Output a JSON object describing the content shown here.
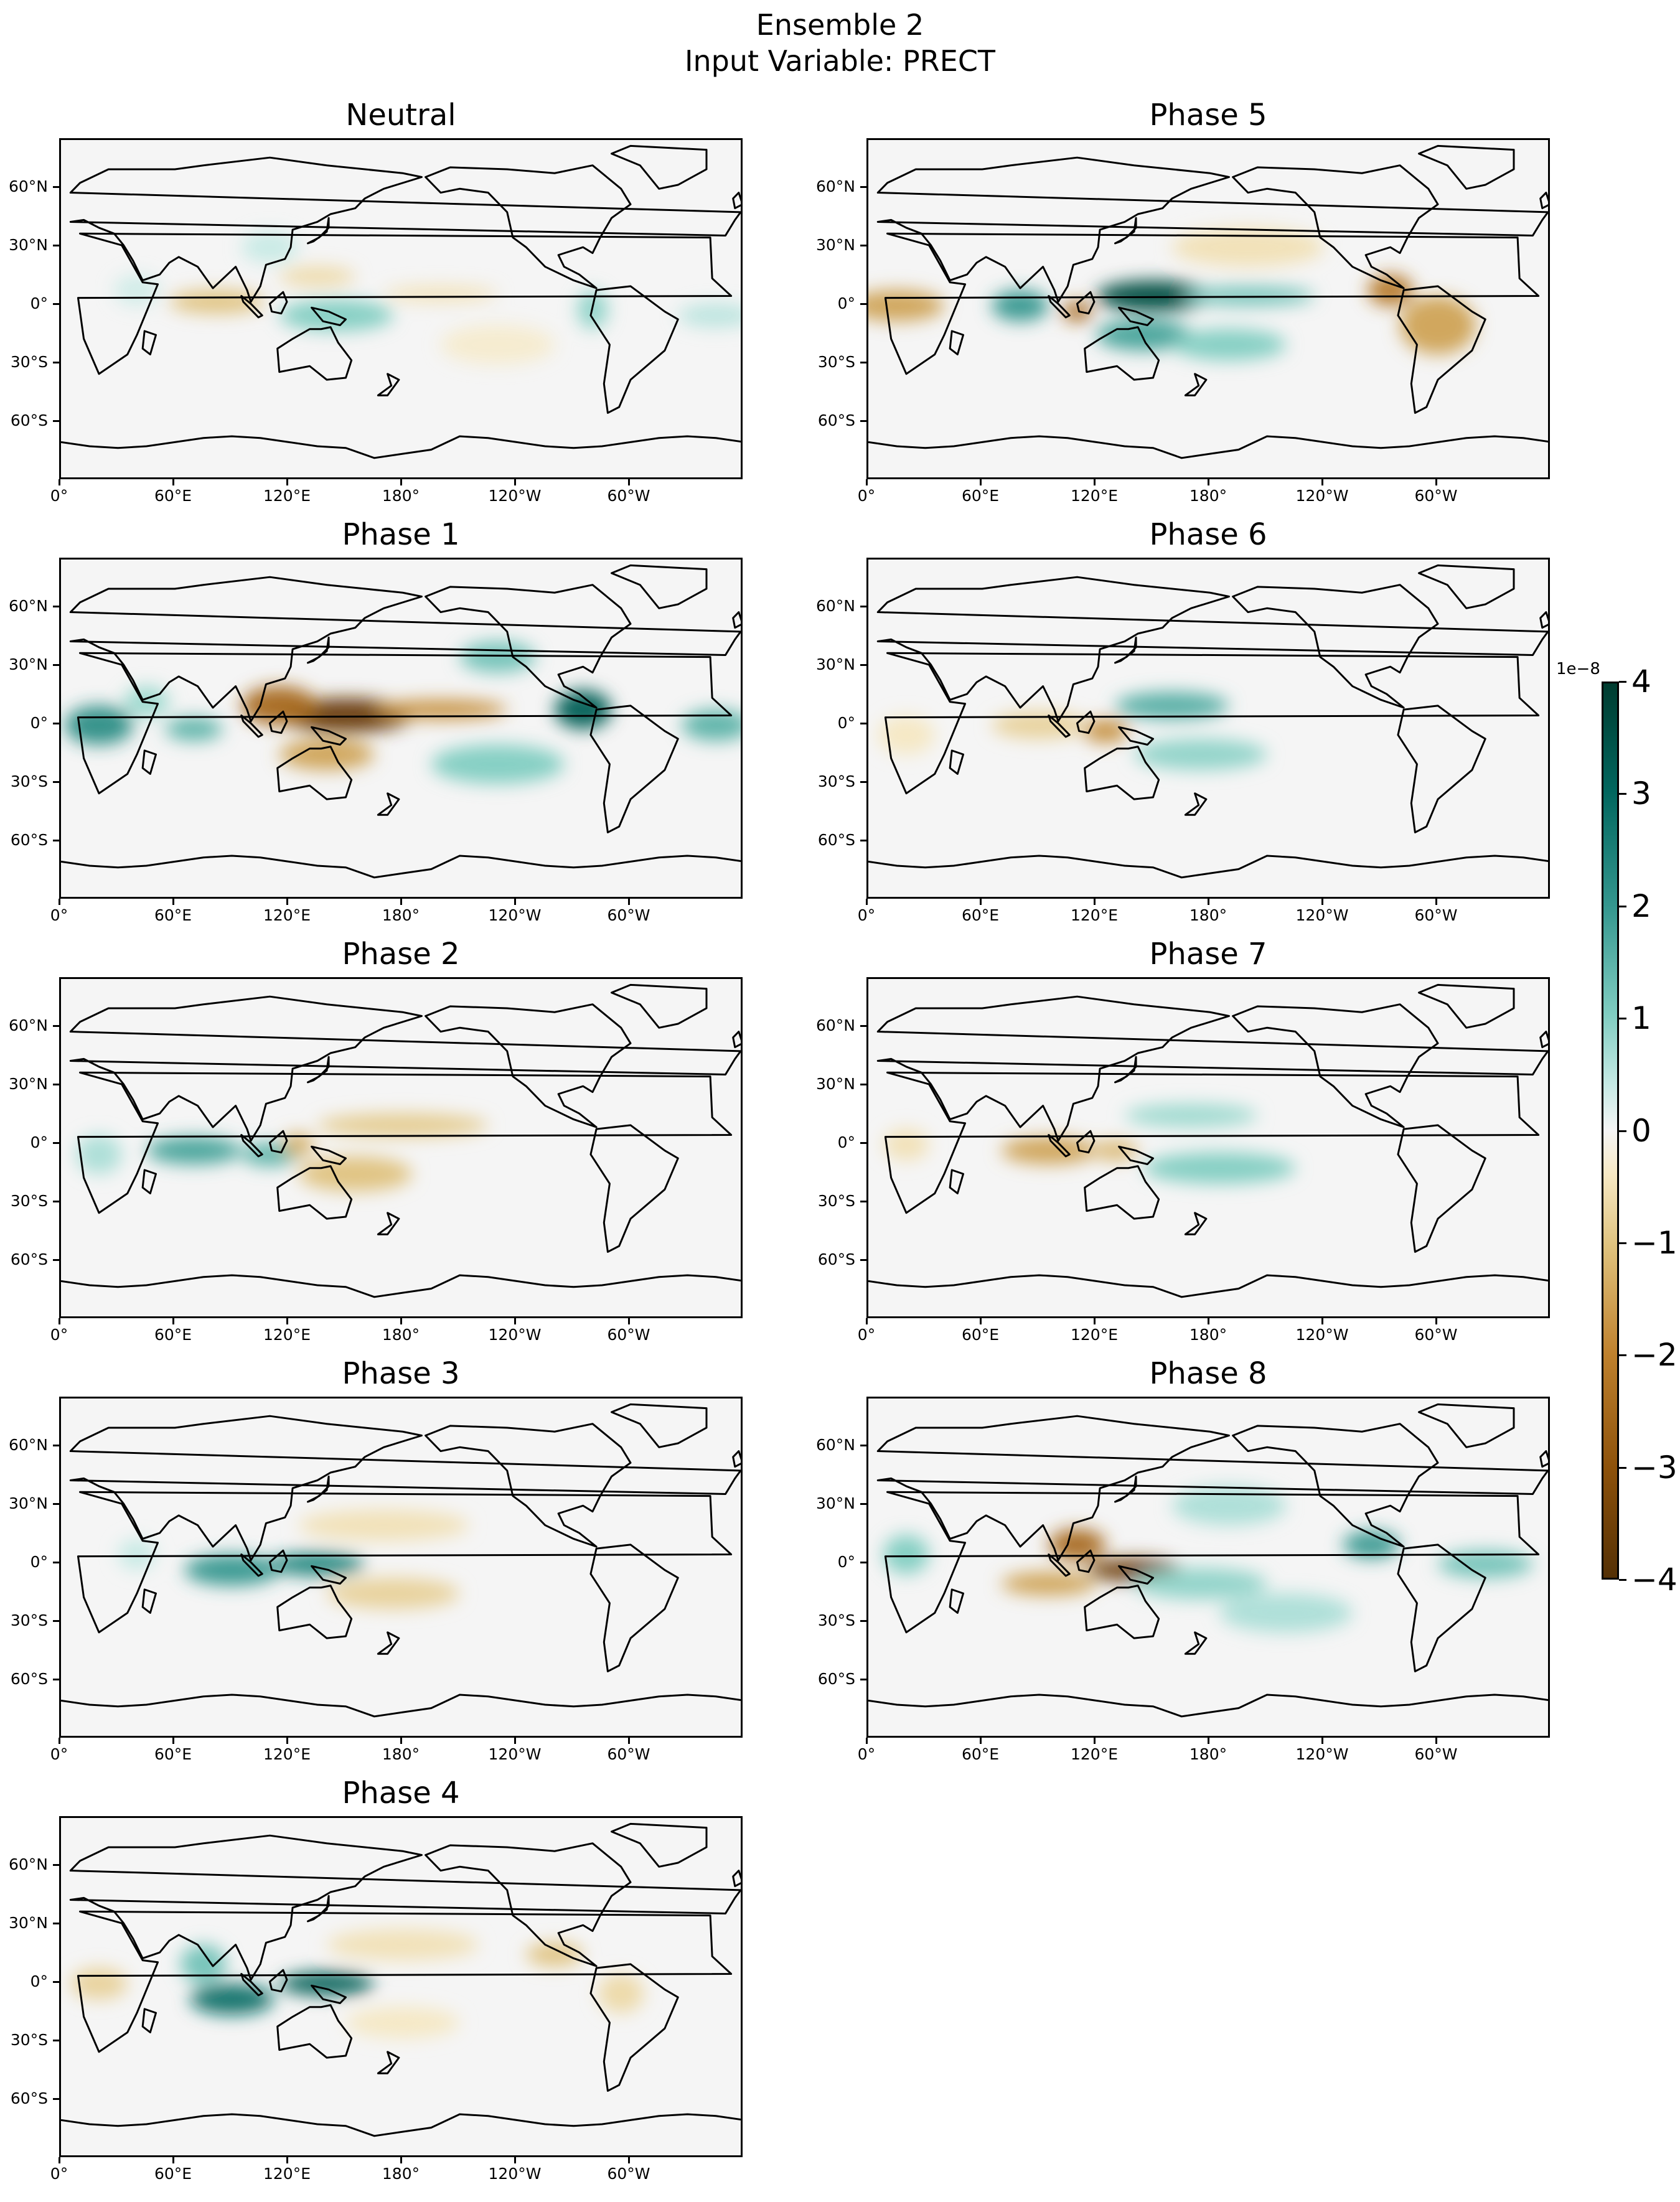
{
  "chart_data": {
    "type": "heatmap",
    "title": "Ensemble 2",
    "subtitle": "Input Variable: PRECT",
    "panels": [
      {
        "name": "Neutral",
        "blobs": [
          {
            "lon": 82,
            "lat": 2,
            "value": -1.0,
            "rx": 25,
            "ry": 6
          },
          {
            "lon": 135,
            "lat": 15,
            "value": -0.7,
            "rx": 20,
            "ry": 5
          },
          {
            "lon": 145,
            "lat": -5,
            "value": 1.0,
            "rx": 30,
            "ry": 8
          },
          {
            "lon": 200,
            "lat": 6,
            "value": -0.6,
            "rx": 30,
            "ry": 4
          },
          {
            "lon": 280,
            "lat": -2,
            "value": 0.9,
            "rx": 8,
            "ry": 10
          },
          {
            "lon": 110,
            "lat": 30,
            "value": 0.5,
            "rx": 15,
            "ry": 8
          },
          {
            "lon": 40,
            "lat": 8,
            "value": 0.4,
            "rx": 12,
            "ry": 8
          },
          {
            "lon": 230,
            "lat": -20,
            "value": -0.4,
            "rx": 30,
            "ry": 10
          },
          {
            "lon": 345,
            "lat": -5,
            "value": 0.6,
            "rx": 20,
            "ry": 6
          }
        ]
      },
      {
        "name": "Phase 1",
        "blobs": [
          {
            "lon": 150,
            "lat": 5,
            "value": -3.6,
            "rx": 35,
            "ry": 9
          },
          {
            "lon": 115,
            "lat": 10,
            "value": -2.5,
            "rx": 20,
            "ry": 10
          },
          {
            "lon": 200,
            "lat": 8,
            "value": -1.8,
            "rx": 35,
            "ry": 5
          },
          {
            "lon": 140,
            "lat": -15,
            "value": -1.5,
            "rx": 25,
            "ry": 8
          },
          {
            "lon": 20,
            "lat": 0,
            "value": 2.2,
            "rx": 18,
            "ry": 10
          },
          {
            "lon": 70,
            "lat": -2,
            "value": 1.5,
            "rx": 15,
            "ry": 6
          },
          {
            "lon": 275,
            "lat": 8,
            "value": 3.2,
            "rx": 15,
            "ry": 10
          },
          {
            "lon": 345,
            "lat": 0,
            "value": 1.5,
            "rx": 18,
            "ry": 8
          },
          {
            "lon": 230,
            "lat": 35,
            "value": 1.2,
            "rx": 20,
            "ry": 8
          },
          {
            "lon": 230,
            "lat": -20,
            "value": 1.0,
            "rx": 35,
            "ry": 10
          },
          {
            "lon": 45,
            "lat": 12,
            "value": 0.8,
            "rx": 12,
            "ry": 8
          }
        ]
      },
      {
        "name": "Phase 2",
        "blobs": [
          {
            "lon": 70,
            "lat": -3,
            "value": 1.8,
            "rx": 25,
            "ry": 7
          },
          {
            "lon": 110,
            "lat": -5,
            "value": 1.5,
            "rx": 15,
            "ry": 6
          },
          {
            "lon": 180,
            "lat": 10,
            "value": -0.9,
            "rx": 45,
            "ry": 6
          },
          {
            "lon": 155,
            "lat": -15,
            "value": -1.0,
            "rx": 30,
            "ry": 9
          },
          {
            "lon": 125,
            "lat": 0,
            "value": -1.3,
            "rx": 8,
            "ry": 6
          },
          {
            "lon": 20,
            "lat": -5,
            "value": 0.7,
            "rx": 12,
            "ry": 10
          }
        ]
      },
      {
        "name": "Phase 3",
        "blobs": [
          {
            "lon": 90,
            "lat": -3,
            "value": 2.0,
            "rx": 25,
            "ry": 8
          },
          {
            "lon": 135,
            "lat": 0,
            "value": 2.4,
            "rx": 25,
            "ry": 6
          },
          {
            "lon": 170,
            "lat": 20,
            "value": -0.6,
            "rx": 45,
            "ry": 8
          },
          {
            "lon": 175,
            "lat": -15,
            "value": -0.8,
            "rx": 35,
            "ry": 8
          },
          {
            "lon": 40,
            "lat": 5,
            "value": 0.5,
            "rx": 10,
            "ry": 8
          }
        ]
      },
      {
        "name": "Phase 4",
        "blobs": [
          {
            "lon": 90,
            "lat": -8,
            "value": 2.8,
            "rx": 22,
            "ry": 8
          },
          {
            "lon": 140,
            "lat": 0,
            "value": 3.2,
            "rx": 25,
            "ry": 6
          },
          {
            "lon": 75,
            "lat": 10,
            "value": 1.2,
            "rx": 12,
            "ry": 10
          },
          {
            "lon": 20,
            "lat": 0,
            "value": -0.8,
            "rx": 15,
            "ry": 8
          },
          {
            "lon": 180,
            "lat": 20,
            "value": -0.6,
            "rx": 40,
            "ry": 8
          },
          {
            "lon": 260,
            "lat": 15,
            "value": -1.0,
            "rx": 15,
            "ry": 6
          },
          {
            "lon": 295,
            "lat": -5,
            "value": -0.7,
            "rx": 12,
            "ry": 10
          },
          {
            "lon": 180,
            "lat": -20,
            "value": -0.5,
            "rx": 30,
            "ry": 8
          }
        ]
      },
      {
        "name": "Phase 5",
        "blobs": [
          {
            "lon": 150,
            "lat": 5,
            "value": 3.6,
            "rx": 30,
            "ry": 8
          },
          {
            "lon": 110,
            "lat": -3,
            "value": -2.5,
            "rx": 8,
            "ry": 5
          },
          {
            "lon": 80,
            "lat": 0,
            "value": 2.0,
            "rx": 15,
            "ry": 8
          },
          {
            "lon": 145,
            "lat": -15,
            "value": 1.8,
            "rx": 25,
            "ry": 8
          },
          {
            "lon": 200,
            "lat": 5,
            "value": 1.2,
            "rx": 35,
            "ry": 5
          },
          {
            "lon": 190,
            "lat": -20,
            "value": 1.0,
            "rx": 30,
            "ry": 8
          },
          {
            "lon": 15,
            "lat": 0,
            "value": -1.5,
            "rx": 25,
            "ry": 8
          },
          {
            "lon": 275,
            "lat": 8,
            "value": -2.2,
            "rx": 12,
            "ry": 8
          },
          {
            "lon": 300,
            "lat": -10,
            "value": -1.5,
            "rx": 20,
            "ry": 15
          },
          {
            "lon": 200,
            "lat": 30,
            "value": -0.6,
            "rx": 40,
            "ry": 10
          }
        ]
      },
      {
        "name": "Phase 6",
        "blobs": [
          {
            "lon": 160,
            "lat": 10,
            "value": 1.6,
            "rx": 30,
            "ry": 7
          },
          {
            "lon": 125,
            "lat": -3,
            "value": -1.8,
            "rx": 12,
            "ry": 6
          },
          {
            "lon": 90,
            "lat": 0,
            "value": -0.8,
            "rx": 25,
            "ry": 7
          },
          {
            "lon": 175,
            "lat": -15,
            "value": 0.9,
            "rx": 35,
            "ry": 8
          },
          {
            "lon": 20,
            "lat": -5,
            "value": -0.5,
            "rx": 15,
            "ry": 10
          }
        ]
      },
      {
        "name": "Phase 7",
        "blobs": [
          {
            "lon": 95,
            "lat": -3,
            "value": -1.5,
            "rx": 25,
            "ry": 7
          },
          {
            "lon": 130,
            "lat": -3,
            "value": -1.2,
            "rx": 12,
            "ry": 5
          },
          {
            "lon": 170,
            "lat": 15,
            "value": 0.8,
            "rx": 35,
            "ry": 6
          },
          {
            "lon": 185,
            "lat": -12,
            "value": 1.0,
            "rx": 40,
            "ry": 8
          },
          {
            "lon": 20,
            "lat": 0,
            "value": -0.6,
            "rx": 12,
            "ry": 8
          }
        ]
      },
      {
        "name": "Phase 8",
        "blobs": [
          {
            "lon": 140,
            "lat": -3,
            "value": -3.5,
            "rx": 25,
            "ry": 6
          },
          {
            "lon": 110,
            "lat": 10,
            "value": -2.5,
            "rx": 15,
            "ry": 8
          },
          {
            "lon": 95,
            "lat": -10,
            "value": -1.5,
            "rx": 25,
            "ry": 6
          },
          {
            "lon": 175,
            "lat": -10,
            "value": 0.9,
            "rx": 35,
            "ry": 8
          },
          {
            "lon": 265,
            "lat": 10,
            "value": 2.0,
            "rx": 15,
            "ry": 7
          },
          {
            "lon": 325,
            "lat": 0,
            "value": 1.2,
            "rx": 25,
            "ry": 7
          },
          {
            "lon": 20,
            "lat": 5,
            "value": 1.0,
            "rx": 12,
            "ry": 10
          },
          {
            "lon": 190,
            "lat": 30,
            "value": 0.7,
            "rx": 30,
            "ry": 10
          },
          {
            "lon": 220,
            "lat": -25,
            "value": 0.7,
            "rx": 35,
            "ry": 10
          }
        ]
      }
    ],
    "xticks": [
      "0°",
      "60°E",
      "120°E",
      "180°",
      "120°W",
      "60°W"
    ],
    "yticks": [
      "60°N",
      "30°N",
      "0°",
      "30°S",
      "60°S"
    ],
    "colorbar": {
      "colormap": "BrBG",
      "vmin": -4,
      "vmax": 4,
      "ticks": [
        "4",
        "3",
        "2",
        "1",
        "0",
        "−1",
        "−2",
        "−3",
        "−4"
      ],
      "exponent_label": "1e−8"
    }
  }
}
